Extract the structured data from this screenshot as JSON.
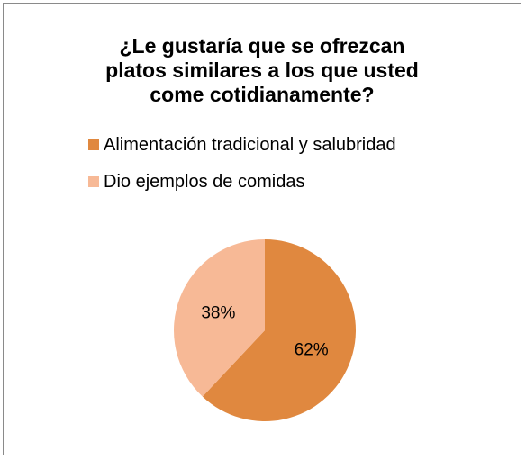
{
  "chart_data": {
    "type": "pie",
    "title_lines": [
      "¿Le gustaría que se ofrezcan",
      "platos similares a los que usted",
      "come cotidianamente?"
    ],
    "categories": [
      "Alimentación tradicional y salubridad",
      "Dio ejemplos de comidas"
    ],
    "values": [
      62,
      38
    ],
    "data_labels": [
      "62%",
      "38%"
    ],
    "colors": [
      "#e0883f",
      "#f7b996"
    ],
    "legend_position": "top"
  }
}
